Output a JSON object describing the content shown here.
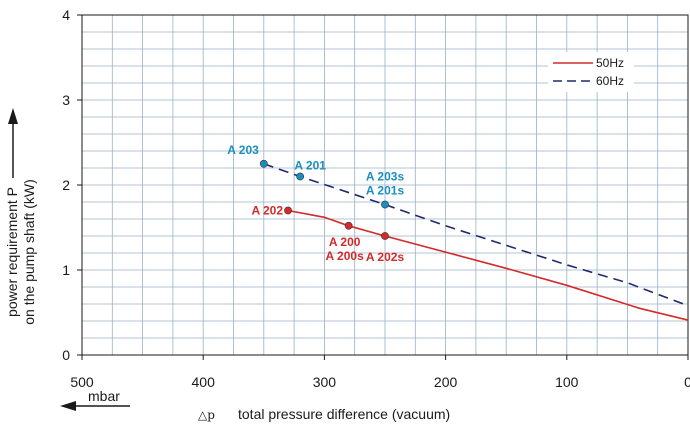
{
  "chart_data": {
    "type": "line",
    "xlabel": "total pressure difference (vacuum)",
    "x_symbol": "△p",
    "x_unit": "mbar",
    "ylabel_line1": "power requirement P",
    "ylabel_line2": "on the pump shaft (kW)",
    "xlim": [
      500,
      0
    ],
    "ylim": [
      0,
      4
    ],
    "x_ticks": [
      "500",
      "400",
      "300",
      "200",
      "100",
      "0"
    ],
    "y_ticks": [
      "0",
      "1",
      "2",
      "3",
      "4"
    ],
    "grid": true,
    "legend_position": "top-right",
    "series": [
      {
        "name": "50Hz",
        "color": "#d42a2a",
        "dash": "solid",
        "points": [
          [
            330,
            1.7
          ],
          [
            300,
            1.62
          ],
          [
            280,
            1.52
          ],
          [
            250,
            1.4
          ],
          [
            150,
            1.02
          ],
          [
            100,
            0.82
          ],
          [
            40,
            0.55
          ],
          [
            0,
            0.41
          ]
        ]
      },
      {
        "name": "60Hz",
        "color": "#1f2a6e",
        "dash": "dashed",
        "points": [
          [
            350,
            2.25
          ],
          [
            320,
            2.1
          ],
          [
            250,
            1.77
          ],
          [
            200,
            1.52
          ],
          [
            100,
            1.06
          ],
          [
            50,
            0.85
          ],
          [
            0,
            0.58
          ]
        ]
      }
    ],
    "markers": [
      {
        "x": 350,
        "y": 2.25,
        "color": "#1a8fbf",
        "lines": [
          "A 203"
        ]
      },
      {
        "x": 320,
        "y": 2.1,
        "color": "#1a8fbf",
        "lines": [
          "A 201"
        ]
      },
      {
        "x": 250,
        "y": 1.77,
        "color": "#1a8fbf",
        "lines": [
          "A 203s",
          "A 201s"
        ]
      },
      {
        "x": 330,
        "y": 1.7,
        "color": "#d42a2a",
        "lines": [
          "A 202"
        ]
      },
      {
        "x": 280,
        "y": 1.52,
        "color": "#d42a2a",
        "lines": [
          "A 200",
          "A 200s"
        ]
      },
      {
        "x": 250,
        "y": 1.4,
        "color": "#d42a2a",
        "lines": [
          "A 202s"
        ]
      }
    ]
  }
}
